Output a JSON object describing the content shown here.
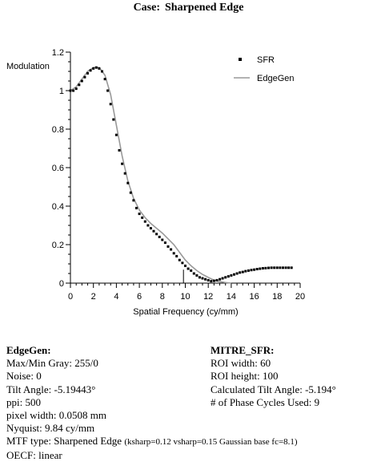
{
  "title": {
    "prefix": "Case:",
    "name": "Sharpened Edge"
  },
  "chart_data": {
    "type": "scatter",
    "title": "Case: Sharpened Edge",
    "xlabel": "Spatial Frequency (cy/mm)",
    "ylabel": "Modulation",
    "xlim": [
      0,
      20
    ],
    "ylim": [
      0,
      1.2
    ],
    "x_ticks": [
      0,
      2,
      4,
      6,
      8,
      10,
      12,
      14,
      16,
      18,
      20
    ],
    "x_tick_labels": [
      "0",
      "2",
      "4",
      "6",
      "8",
      "10",
      "12",
      "14",
      "16",
      "18",
      "20"
    ],
    "y_ticks": [
      0,
      0.2,
      0.4,
      0.6,
      0.8,
      1,
      1.2
    ],
    "y_tick_labels": [
      "0",
      "0.2",
      "0.4",
      "0.6",
      "0.8",
      "1",
      "1.2"
    ],
    "nyquist_marker": 9.84,
    "legend": {
      "position": "top-right"
    },
    "series": [
      {
        "name": "SFR",
        "style": "points",
        "color": "#000000",
        "x": [
          0.0,
          0.25,
          0.5,
          0.75,
          1.0,
          1.25,
          1.5,
          1.75,
          2.0,
          2.25,
          2.5,
          2.75,
          3.0,
          3.25,
          3.5,
          3.75,
          4.0,
          4.25,
          4.5,
          4.75,
          5.0,
          5.25,
          5.5,
          5.75,
          6.0,
          6.25,
          6.5,
          6.75,
          7.0,
          7.25,
          7.5,
          7.75,
          8.0,
          8.25,
          8.5,
          8.75,
          9.0,
          9.25,
          9.5,
          9.75,
          10.0,
          10.25,
          10.5,
          10.75,
          11.0,
          11.25,
          11.5,
          11.75,
          12.0,
          12.25,
          12.5,
          12.75,
          13.0,
          13.25,
          13.5,
          13.75,
          14.0,
          14.25,
          14.5,
          14.75,
          15.0,
          15.25,
          15.5,
          15.75,
          16.0,
          16.25,
          16.5,
          16.75,
          17.0,
          17.25,
          17.5,
          17.75,
          18.0,
          18.25,
          18.5,
          18.75,
          19.0,
          19.25
        ],
        "y": [
          1.0,
          1.0,
          1.01,
          1.03,
          1.05,
          1.07,
          1.09,
          1.105,
          1.115,
          1.12,
          1.115,
          1.1,
          1.06,
          1.0,
          0.93,
          0.85,
          0.77,
          0.69,
          0.62,
          0.57,
          0.52,
          0.47,
          0.43,
          0.39,
          0.36,
          0.34,
          0.32,
          0.3,
          0.285,
          0.27,
          0.255,
          0.24,
          0.225,
          0.21,
          0.19,
          0.175,
          0.155,
          0.14,
          0.12,
          0.105,
          0.09,
          0.075,
          0.065,
          0.05,
          0.04,
          0.03,
          0.025,
          0.02,
          0.015,
          0.01,
          0.012,
          0.015,
          0.02,
          0.025,
          0.03,
          0.035,
          0.04,
          0.045,
          0.05,
          0.055,
          0.058,
          0.062,
          0.065,
          0.068,
          0.07,
          0.073,
          0.075,
          0.077,
          0.078,
          0.079,
          0.08,
          0.08,
          0.08,
          0.08,
          0.08,
          0.08,
          0.08,
          0.08
        ]
      },
      {
        "name": "EdgeGen",
        "style": "line",
        "color": "#999999",
        "x": [
          0,
          0.5,
          1,
          1.5,
          2,
          2.5,
          3,
          3.5,
          4,
          4.5,
          5,
          5.5,
          6,
          6.5,
          7,
          7.5,
          8,
          8.5,
          9,
          9.5,
          10,
          10.5,
          11,
          11.5,
          12,
          12.5,
          13,
          13.5,
          14
        ],
        "y": [
          1.0,
          1.02,
          1.06,
          1.1,
          1.12,
          1.12,
          1.08,
          0.98,
          0.82,
          0.66,
          0.53,
          0.44,
          0.38,
          0.34,
          0.31,
          0.285,
          0.26,
          0.23,
          0.2,
          0.16,
          0.12,
          0.09,
          0.065,
          0.045,
          0.03,
          0.015,
          0.008,
          0.003,
          0.0
        ]
      }
    ]
  },
  "left_panel": {
    "header": "EdgeGen:",
    "lines": [
      "Max/Min Gray:  255/0",
      "Noise: 0",
      "Tilt Angle: -5.19443°",
      "ppi: 500",
      "pixel width:  0.0508 mm",
      "Nyquist: 9.84 cy/mm"
    ],
    "mtf_prefix": "MTF type:  Sharpened Edge ",
    "mtf_detail": "(ksharp=0.12  vsharp=0.15  Gaussian base fc=8.1)",
    "oecf": "OECF: linear"
  },
  "right_panel": {
    "header": "MITRE_SFR:",
    "lines": [
      "ROI width: 60",
      "ROI height:  100",
      "Calculated Tilt Angle: -5.194°",
      "# of Phase Cycles Used: 9"
    ]
  }
}
